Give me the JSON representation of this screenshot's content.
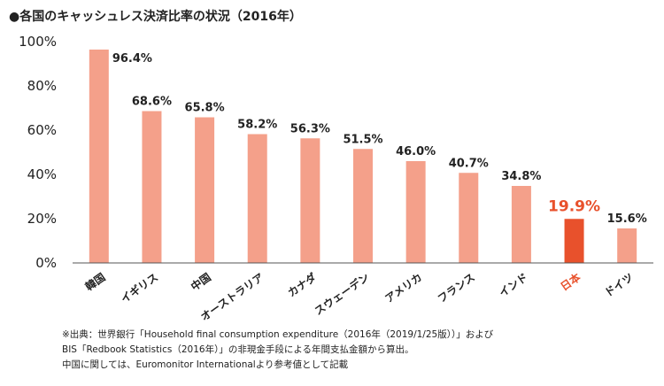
{
  "title": "●各国のキャッシュレス決済比率の状況（2016年）",
  "notes": [
    "※出典：世界銀行「Household final consumption expenditure（2016年（2019/1/25版））」および",
    "BIS「Redbook Statistics（2016年）」の非現金手段による年間支払金額から算出。",
    "中国に関しては、Euromonitor Internationalより参考値として記載"
  ],
  "colors": {
    "bar": "#f4a08a",
    "highlight": "#e8512c",
    "axis": "#555555"
  },
  "chart_data": {
    "type": "bar",
    "title": "各国のキャッシュレス決済比率の状況（2016年）",
    "categories": [
      "韓国",
      "イギリス",
      "中国",
      "オーストラリア",
      "カナダ",
      "スウェーデン",
      "アメリカ",
      "フランス",
      "インド",
      "日本",
      "ドイツ"
    ],
    "values": [
      96.4,
      68.6,
      65.8,
      58.2,
      56.3,
      51.5,
      46.0,
      40.7,
      34.8,
      19.9,
      15.6
    ],
    "value_labels": [
      "96.4%",
      "68.6%",
      "65.8%",
      "58.2%",
      "56.3%",
      "51.5%",
      "46.0%",
      "40.7%",
      "34.8%",
      "19.9%",
      "15.6%"
    ],
    "highlight_category": "日本",
    "ylim": [
      0,
      100
    ],
    "yticks": [
      0,
      20,
      40,
      60,
      80,
      100
    ],
    "ytick_labels": [
      "0%",
      "20%",
      "40%",
      "60%",
      "80%",
      "100%"
    ],
    "grid": false,
    "legend": "none",
    "xlabel": "",
    "ylabel": ""
  }
}
